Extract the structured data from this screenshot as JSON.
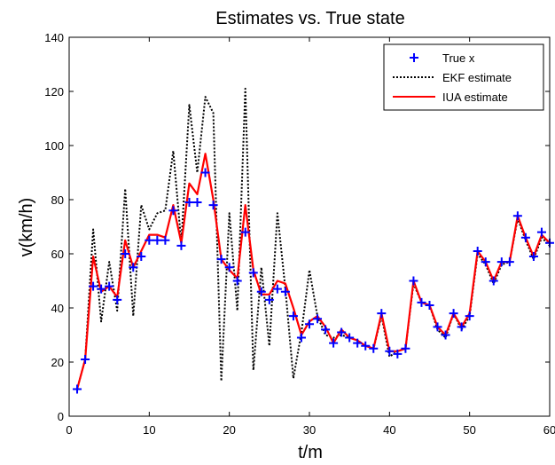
{
  "chart_data": {
    "type": "line",
    "title": "Estimates vs. True state",
    "xlabel": "t/m",
    "ylabel": "v(km/h)",
    "xlim": [
      0,
      60
    ],
    "ylim": [
      0,
      140
    ],
    "xticks": [
      0,
      10,
      20,
      30,
      40,
      50,
      60
    ],
    "yticks": [
      0,
      20,
      40,
      60,
      80,
      100,
      120,
      140
    ],
    "grid": false,
    "legend_position": "top-right",
    "x": [
      1,
      2,
      3,
      4,
      5,
      6,
      7,
      8,
      9,
      10,
      11,
      12,
      13,
      14,
      15,
      16,
      17,
      18,
      19,
      20,
      21,
      22,
      23,
      24,
      25,
      26,
      27,
      28,
      29,
      30,
      31,
      32,
      33,
      34,
      35,
      36,
      37,
      38,
      39,
      40,
      41,
      42,
      43,
      44,
      45,
      46,
      47,
      48,
      49,
      50,
      51,
      52,
      53,
      54,
      55,
      56,
      57,
      58,
      59,
      60
    ],
    "series": [
      {
        "name": "True x",
        "style": "marker",
        "color": "#0000ff",
        "values": [
          10,
          21,
          48,
          47,
          48,
          43,
          60,
          55,
          59,
          65,
          65,
          65,
          76,
          63,
          79,
          79,
          90,
          78,
          58,
          55,
          50,
          68,
          53,
          46,
          43,
          47,
          46,
          37,
          29,
          34,
          36,
          32,
          27,
          31,
          29,
          27,
          26,
          25,
          38,
          24,
          23,
          25,
          50,
          42,
          41,
          33,
          30,
          38,
          33,
          37,
          61,
          57,
          50,
          57,
          57,
          74,
          66,
          59,
          68,
          64
        ]
      },
      {
        "name": "EKF estimate",
        "style": "dotted",
        "color": "#000000",
        "values": [
          10,
          21,
          69,
          35,
          57,
          39,
          84,
          37,
          78,
          69,
          75,
          76,
          98,
          64,
          115,
          90,
          118,
          112,
          13,
          75,
          39,
          121,
          17,
          55,
          26,
          75,
          47,
          14,
          31,
          54,
          37,
          30,
          29,
          30,
          29,
          28,
          26,
          25,
          37,
          22,
          24,
          25,
          49,
          42,
          41,
          32,
          29,
          38,
          32,
          37,
          60,
          56,
          49,
          56,
          57,
          73,
          65,
          58,
          66,
          63
        ]
      },
      {
        "name": "IUA estimate",
        "style": "solid",
        "color": "#ff0000",
        "values": [
          10,
          21,
          59,
          46,
          48,
          44,
          65,
          55,
          61,
          67,
          67,
          66,
          78,
          64,
          86,
          82,
          97,
          80,
          58,
          54,
          51,
          78,
          54,
          45,
          45,
          50,
          49,
          40,
          30,
          35,
          37,
          33,
          27,
          32,
          29,
          28,
          26,
          25,
          38,
          24,
          24,
          25,
          50,
          42,
          41,
          33,
          30,
          38,
          33,
          38,
          61,
          57,
          50,
          57,
          57,
          74,
          66,
          59,
          67,
          64
        ]
      }
    ]
  }
}
